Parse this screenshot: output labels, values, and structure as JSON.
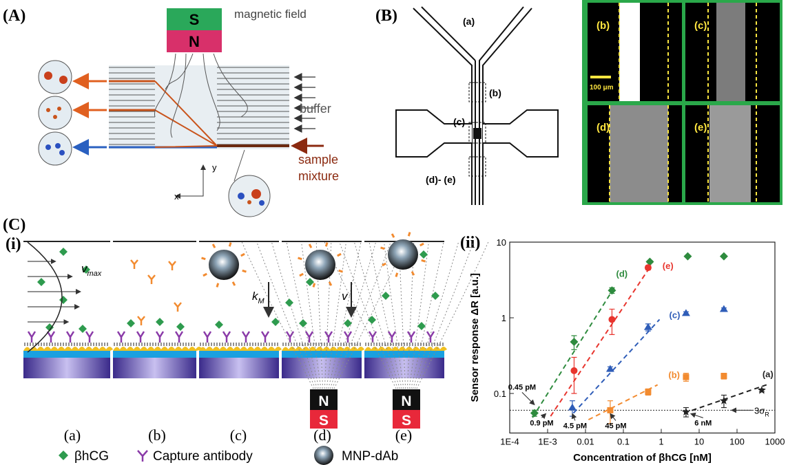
{
  "panel_a": {
    "label": "(A)",
    "magnet_top": "S",
    "magnet_bottom": "N",
    "field_label": "magnetic field",
    "buffer_label": "buffer",
    "sample_label": [
      "sample",
      "mixture"
    ],
    "axis_y": "y",
    "axis_x": "x"
  },
  "panel_b": {
    "label": "(B)",
    "channel_labels": [
      "(a)",
      "(b)",
      "(c)",
      "(d)- (e)"
    ],
    "image_labels": [
      "(b)",
      "(c)",
      "(d)",
      "(e)"
    ],
    "scale_bar": "100 μm"
  },
  "panel_c": {
    "label": "(C)",
    "sub_i": "(i)",
    "sub_ii": "(ii)",
    "steps": [
      "(a)",
      "(b)",
      "(c)",
      "(d)",
      "(e)"
    ],
    "magnets": [
      {
        "top": "N",
        "bottom": "S"
      },
      {
        "top": "N",
        "bottom": "S"
      }
    ],
    "velocity": {
      "symbol": "v",
      "sub": "max"
    },
    "km": {
      "symbol": "k",
      "sub": "M"
    },
    "v": "v",
    "legend": [
      "βhCG",
      "Capture antibody",
      "MNP-dAb"
    ]
  },
  "chart_data": {
    "type": "scatter",
    "xlabel": "Concentration of βhCG [nM]",
    "ylabel": "Sensor response ΔR [a.u.]",
    "xscale": "log",
    "yscale": "log",
    "xlim": [
      0.0001,
      1000
    ],
    "ylim": [
      0.03,
      10
    ],
    "xticks": [
      {
        "value": 0.0001,
        "label": "1E-4"
      },
      {
        "value": 0.001,
        "label": "1E-3"
      },
      0.01,
      0.1,
      1,
      10,
      100,
      1000
    ],
    "yticks": [
      0.1,
      1,
      10
    ],
    "series": [
      {
        "name": "(d)",
        "color": "#2e8b3e",
        "marker": "diamond",
        "x": [
          0.00045,
          0.005,
          0.05,
          0.5,
          5,
          45
        ],
        "values": [
          0.055,
          0.48,
          2.3,
          5.5,
          6.5,
          6.5
        ],
        "errors": [
          0.005,
          0.1,
          0.2,
          0.2,
          0.2,
          0.2
        ],
        "fit": {
          "x": [
            0.0004,
            0.06
          ],
          "y": [
            0.048,
            2.6
          ]
        }
      },
      {
        "name": "(e)",
        "color": "#e8352e",
        "marker": "circle",
        "x": [
          0.005,
          0.05,
          0.45
        ],
        "values": [
          0.2,
          0.95,
          4.6
        ],
        "errors": [
          0.1,
          0.35,
          0.3
        ],
        "fit": {
          "x": [
            0.0012,
            0.55
          ],
          "y": [
            0.05,
            5
          ]
        }
      },
      {
        "name": "(c)",
        "color": "#2f5db8",
        "marker": "triangle",
        "x": [
          0.0045,
          0.045,
          0.45,
          4.5,
          45
        ],
        "values": [
          0.065,
          0.21,
          0.75,
          1.15,
          1.3
        ],
        "errors": [
          0.015,
          0.015,
          0.08,
          0.05,
          0.05
        ],
        "fit": {
          "x": [
            0.0048,
            0.9
          ],
          "y": [
            0.055,
            0.95
          ]
        }
      },
      {
        "name": "(b)",
        "color": "#f28b30",
        "marker": "square",
        "x": [
          0.045,
          0.45,
          4.5,
          45
        ],
        "values": [
          0.06,
          0.105,
          0.165,
          0.17
        ],
        "errors": [
          0.02,
          0.01,
          0.02,
          0.015
        ],
        "fit": {
          "x": [
            0.012,
            0.8
          ],
          "y": [
            0.045,
            0.13
          ]
        }
      },
      {
        "name": "(a)",
        "color": "#222222",
        "marker": "star",
        "x": [
          4.5,
          45,
          450
        ],
        "values": [
          0.057,
          0.08,
          0.11
        ],
        "errors": [
          0.008,
          0.015,
          0.005
        ],
        "fit": {
          "x": [
            4,
            600
          ],
          "y": [
            0.055,
            0.13
          ]
        }
      }
    ],
    "threshold": {
      "value": 0.06,
      "symbol": "3σ",
      "sub": "R"
    },
    "annotations": [
      {
        "text": "0.45 pM",
        "x": 0.00045
      },
      {
        "text": "0.9 pM",
        "x": 0.0009
      },
      {
        "text": "4.5 pM",
        "x": 0.0045
      },
      {
        "text": "45 pM",
        "x": 0.045
      },
      {
        "text": "6 nM",
        "x": 6
      }
    ]
  }
}
